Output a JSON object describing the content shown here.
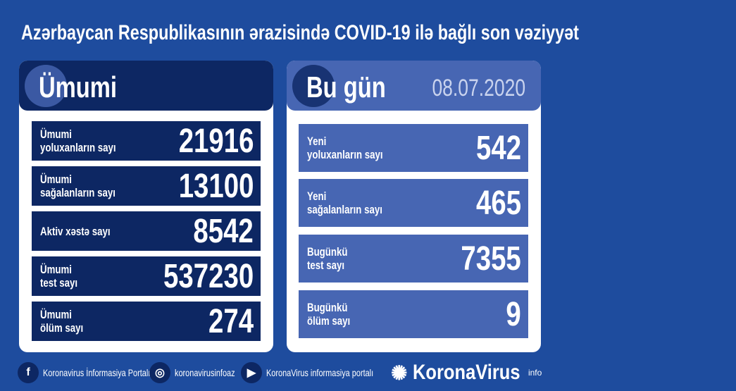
{
  "title": "Azərbaycan Respublikasının ərazisində COVID-19 ilə bağlı son vəziyyət",
  "total": {
    "header": "Ümumi",
    "rows": [
      {
        "label1": "Ümumi",
        "label2": "yoluxanların sayı",
        "value": "21916"
      },
      {
        "label1": "Ümumi",
        "label2": "sağalanların sayı",
        "value": "13100"
      },
      {
        "label1": "Aktiv xəstə sayı",
        "label2": "",
        "value": "8542"
      },
      {
        "label1": "Ümumi",
        "label2": "test sayı",
        "value": "537230"
      },
      {
        "label1": "Ümumi",
        "label2": "ölüm sayı",
        "value": "274"
      }
    ]
  },
  "today": {
    "header": "Bu gün",
    "date": "08.07.2020",
    "rows": [
      {
        "label1": "Yeni",
        "label2": "yoluxanların sayı",
        "value": "542"
      },
      {
        "label1": "Yeni",
        "label2": "sağalanların sayı",
        "value": "465"
      },
      {
        "label1": "Bugünkü",
        "label2": "test sayı",
        "value": "7355"
      },
      {
        "label1": "Bugünkü",
        "label2": "ölüm sayı",
        "value": "9"
      }
    ]
  },
  "footer": {
    "facebook": "Koronavirus İnformasiya Portalı",
    "instagram": "koronavirusinfoaz",
    "youtube": "KoronaVirus informasiya portalı",
    "logo": "KoronaVirus",
    "logo_sup": "info"
  },
  "colors": {
    "background": "#1e4c9e",
    "navy": "#0d2763",
    "accent": "#4766b3"
  }
}
